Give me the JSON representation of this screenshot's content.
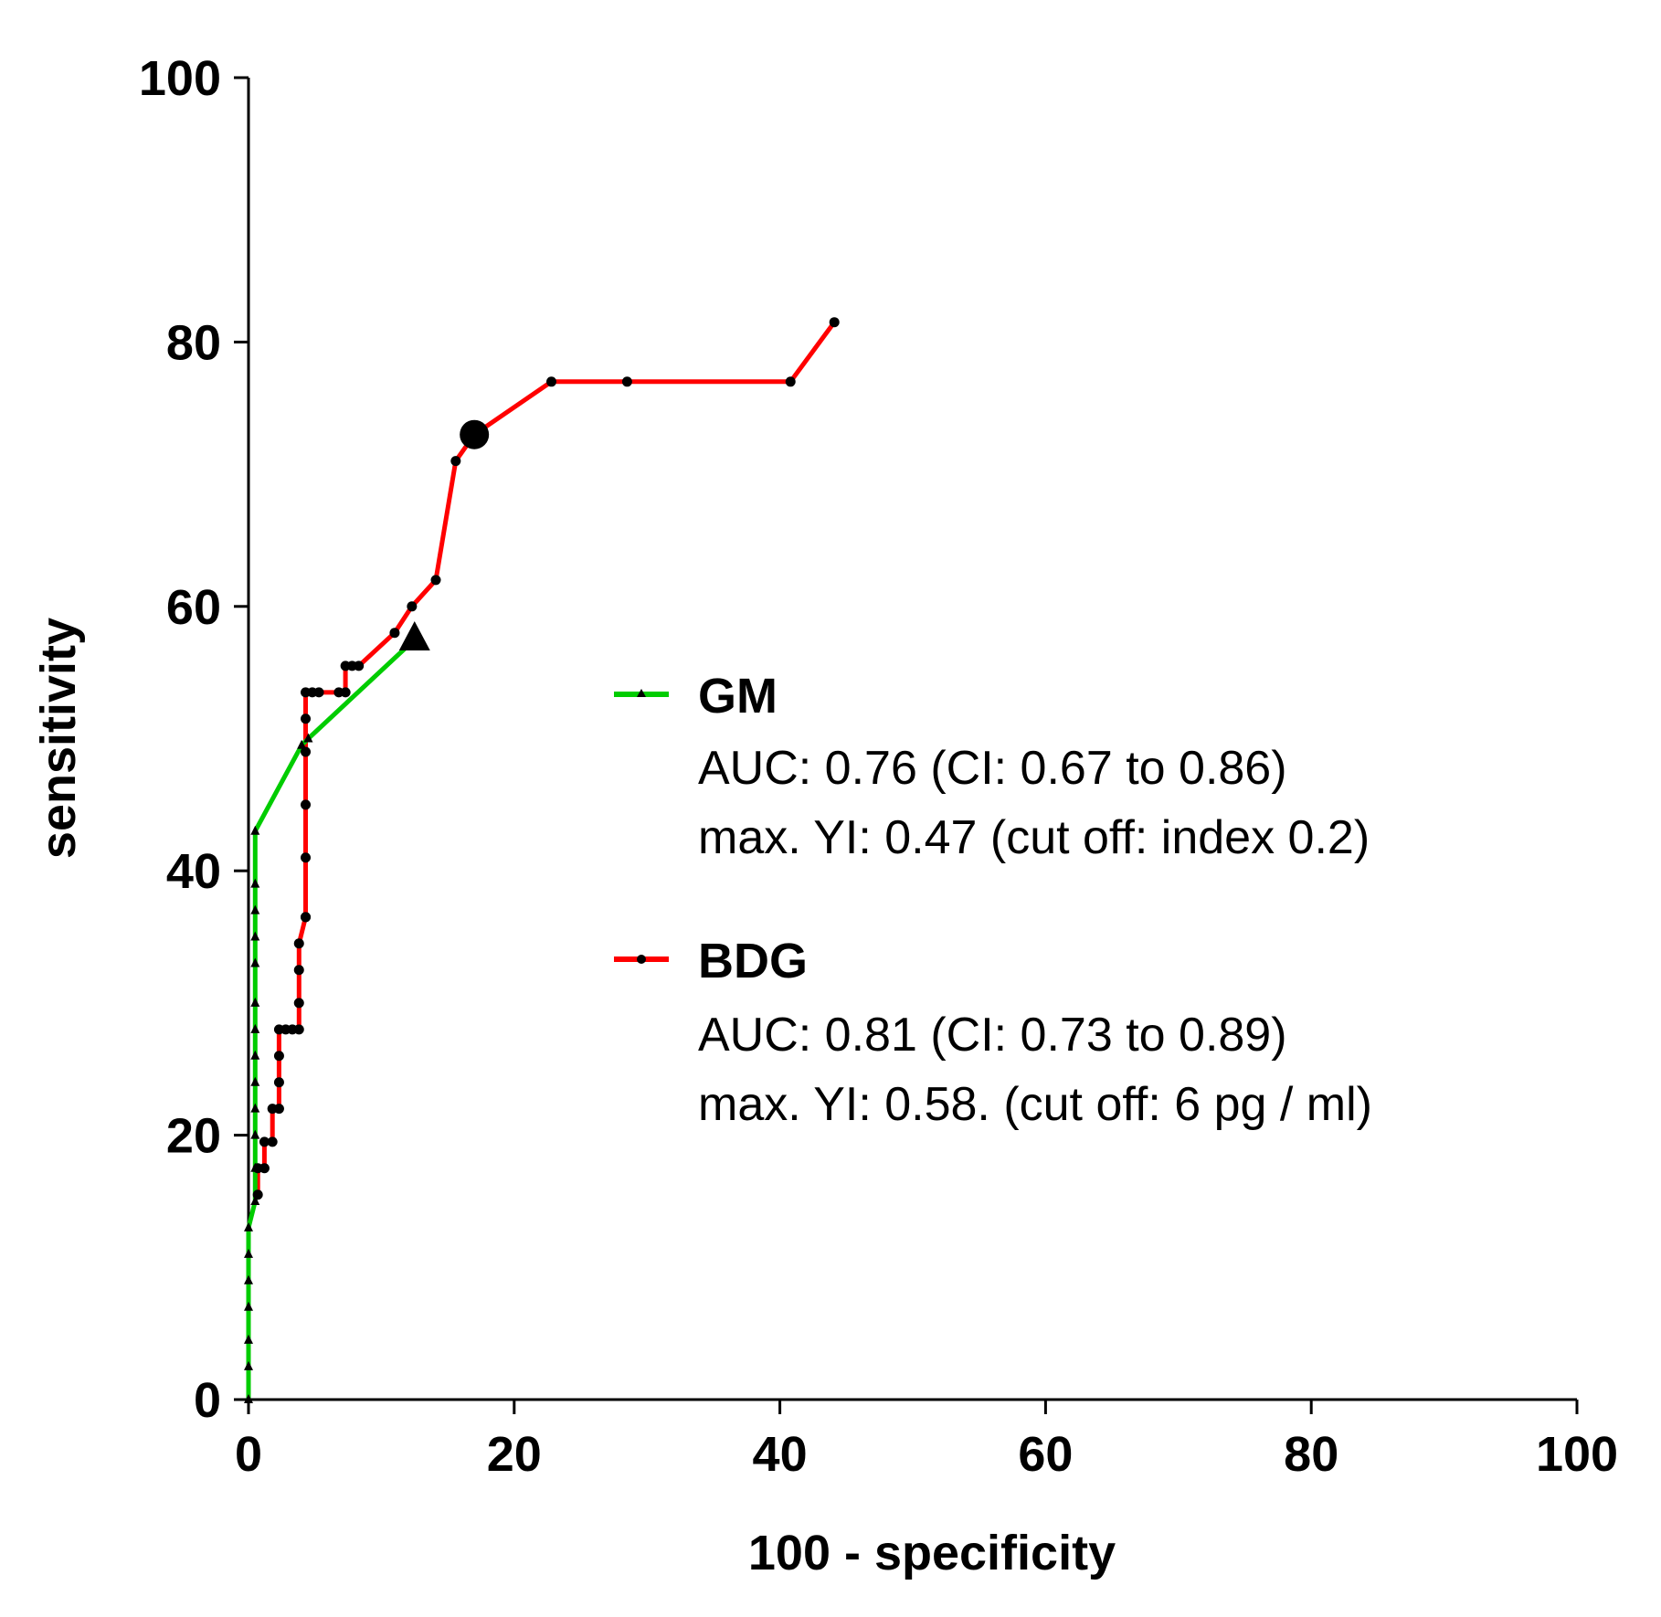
{
  "chart_data": {
    "type": "line",
    "title": "",
    "xlabel": "100 - specificity",
    "ylabel": "sensitivity",
    "xlim": [
      0,
      100
    ],
    "ylim": [
      0,
      100
    ],
    "xticks": [
      0,
      20,
      40,
      60,
      80,
      100
    ],
    "yticks": [
      0,
      20,
      40,
      60,
      80,
      100
    ],
    "grid": false,
    "legend_position": "right",
    "series": [
      {
        "name": "GM",
        "color": "#00cc00",
        "marker": "triangle",
        "auc_text": "AUC: 0.76 (CI: 0.67 to 0.86)",
        "yi_text": "max. YI: 0.47 (cut off: index 0.2)",
        "x": [
          0,
          0,
          0,
          0,
          0,
          0,
          0,
          0.5,
          0.5,
          0.5,
          0.5,
          0.5,
          0.5,
          0.5,
          0.5,
          0.5,
          0.5,
          0.5,
          0.5,
          0.5,
          4,
          4.5,
          12.5
        ],
        "y": [
          0,
          2.5,
          4.5,
          7,
          9,
          11,
          13,
          15,
          17.5,
          20,
          22,
          24,
          26,
          28,
          30,
          33,
          35,
          37,
          39,
          43,
          49.5,
          50,
          57.5
        ],
        "highlight": {
          "x": 12.5,
          "y": 57.5
        }
      },
      {
        "name": "BDG",
        "color": "#ff0000",
        "marker": "circle",
        "auc_text": "AUC: 0.81 (CI: 0.73 to 0.89)",
        "yi_text": "max. YI: 0.58. (cut off: 6 pg / ml)",
        "x": [
          0.7,
          0.7,
          1.2,
          1.2,
          1.8,
          1.8,
          2.3,
          2.3,
          2.3,
          2.3,
          2.8,
          3.3,
          3.8,
          3.8,
          3.8,
          3.8,
          4.3,
          4.3,
          4.3,
          4.3,
          4.3,
          4.3,
          4.3,
          4.8,
          5.3,
          6.8,
          7.3,
          7.3,
          7.8,
          8.3,
          11,
          12.3,
          14.1,
          15.6,
          17,
          22.8,
          28.5,
          40.8,
          44.1
        ],
        "y": [
          15.5,
          17.5,
          17.5,
          19.5,
          19.5,
          22,
          22,
          24,
          26,
          28,
          28,
          28,
          28,
          30,
          32.5,
          34.5,
          36.5,
          36.5,
          41,
          45,
          49,
          51.5,
          53.5,
          53.5,
          53.5,
          53.5,
          53.5,
          55.5,
          55.5,
          55.5,
          58,
          60,
          62,
          71,
          73,
          77,
          77,
          77,
          81.5
        ],
        "highlight": {
          "x": 17,
          "y": 73
        }
      }
    ]
  }
}
